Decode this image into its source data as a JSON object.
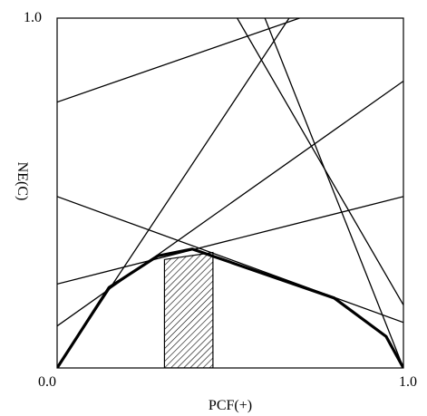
{
  "chart_data": {
    "type": "line",
    "title": "",
    "xlabel": "PCF(+)",
    "ylabel": "NE(C)",
    "xlim": [
      0,
      1
    ],
    "ylim": [
      0,
      1
    ],
    "x_tick_labels": [
      "0.0",
      "1.0"
    ],
    "y_tick_labels": [
      "1.0"
    ],
    "grid": false,
    "lines": [
      {
        "x": [
          0,
          0.7
        ],
        "y": [
          0.76,
          1.0
        ]
      },
      {
        "x": [
          0,
          1
        ],
        "y": [
          0.49,
          0.13
        ]
      },
      {
        "x": [
          0,
          1
        ],
        "y": [
          0.24,
          0.49
        ]
      },
      {
        "x": [
          0,
          1
        ],
        "y": [
          0.12,
          0.82
        ]
      },
      {
        "x": [
          0,
          0.67
        ],
        "y": [
          0,
          1.0
        ]
      },
      {
        "x": [
          0.52,
          1
        ],
        "y": [
          1.0,
          0.18
        ]
      },
      {
        "x": [
          0.6,
          1
        ],
        "y": [
          1.0,
          0
        ]
      }
    ],
    "lower_envelope": {
      "x": [
        0,
        0.15,
        0.29,
        0.39,
        0.8,
        0.95,
        1
      ],
      "y": [
        0,
        0.23,
        0.32,
        0.34,
        0.2,
        0.09,
        0
      ]
    },
    "shaded_region": {
      "x": [
        0.31,
        0.45
      ],
      "y_top": [
        0.31,
        0.33
      ]
    },
    "origin_label": "0.0"
  }
}
